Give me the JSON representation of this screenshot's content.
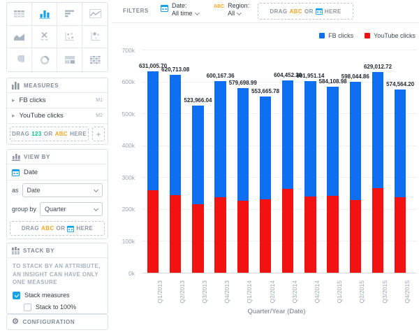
{
  "colors": {
    "fb_blue": "#0E6FF2",
    "yt_red": "#F21212",
    "accent_blue": "#15A2E8",
    "token_green": "#00C18D",
    "token_orange": "#F5A623",
    "icon_gray": "#AAB6C1"
  },
  "sidebar": {
    "vis_types": [
      {
        "name": "table"
      },
      {
        "name": "column-chart",
        "selected": true
      },
      {
        "name": "bar-chart"
      },
      {
        "name": "line-chart"
      },
      {
        "name": "area-chart"
      },
      {
        "name": "headline"
      },
      {
        "name": "scatter-plot"
      },
      {
        "name": "bubble-chart"
      },
      {
        "name": "pie-chart"
      },
      {
        "name": "donut-chart"
      },
      {
        "name": "treemap"
      },
      {
        "name": "heatmap"
      }
    ],
    "measures": {
      "title": "MEASURES",
      "items": [
        {
          "label": "FB clicks",
          "badge": "M1"
        },
        {
          "label": "YouTube clicks",
          "badge": "M2"
        }
      ],
      "drop": {
        "t1": "DRAG",
        "t2": "123",
        "t3": "OR",
        "t4": "ABC",
        "t5": "HERE"
      },
      "add_label": "+"
    },
    "view_by": {
      "title": "VIEW BY",
      "attribute": "Date",
      "as_label": "as",
      "as_value": "Date",
      "group_by_label": "group by",
      "group_by_value": "Quarter",
      "drop": {
        "t1": "DRAG",
        "t2": "ABC",
        "t3": "OR",
        "t4": "HERE"
      }
    },
    "stack_by": {
      "title": "STACK BY",
      "hint": "TO STACK BY AN ATTRIBUTE, AN INSIGHT CAN HAVE ONLY ONE MEASURE",
      "stack_measures": {
        "label": "Stack measures",
        "checked": true
      },
      "stack_to_100": {
        "label": "Stack to 100%",
        "checked": false
      }
    },
    "configuration": {
      "title": "CONFIGURATION"
    }
  },
  "filters": {
    "title": "FILTERS",
    "date": {
      "label": "Date:",
      "value": "All time"
    },
    "region": {
      "token": "ABC",
      "label": "Region:",
      "value": "All"
    },
    "drop": {
      "t1": "DRAG",
      "t2": "ABC",
      "t3": "OR",
      "t4": "HERE"
    }
  },
  "chart_data": {
    "type": "bar",
    "stacked": true,
    "categories": [
      "Q1/2013",
      "Q2/2013",
      "Q3/2013",
      "Q4/2013",
      "Q1/2014",
      "Q2/2014",
      "Q3/2014",
      "Q4/2014",
      "Q1/2015",
      "Q2/2015",
      "Q3/2015",
      "Q4/2015"
    ],
    "series": [
      {
        "name": "FB clicks",
        "color": "#0E6FF2",
        "values": [
          371005.7,
          377213.08,
          307966.04,
          364167.36,
          353698.99,
          324165.78,
          340952.3,
          362451.14,
          343608.98,
          370544.86,
          364512.72,
          338564.2
        ]
      },
      {
        "name": "YouTube clicks",
        "color": "#F21212",
        "values": [
          260000,
          243500,
          216000,
          236000,
          226000,
          229500,
          263500,
          239500,
          240500,
          227500,
          264500,
          236000
        ]
      }
    ],
    "totals": [
      631005.7,
      620713.08,
      523966.04,
      600167.36,
      579698.99,
      553665.78,
      604452.3,
      601951.14,
      584108.98,
      598044.86,
      629012.72,
      574564.2
    ],
    "total_labels": [
      "631,005.70",
      "620,713.08",
      "523,966.04",
      "600,167.36",
      "579,698.99",
      "553,665.78",
      "604,452.30",
      "601,951.14",
      "584,108.98",
      "598,044.86",
      "629,012.72",
      "574,564.20"
    ],
    "xlabel": "Quarter/Year (Date)",
    "ylabel": "",
    "ylim": [
      0,
      700000
    ],
    "y_ticks": [
      "700k",
      "600k",
      "500k",
      "400k",
      "300k",
      "200k",
      "100k",
      "0k"
    ],
    "grid": true,
    "legend_position": "top-right"
  }
}
